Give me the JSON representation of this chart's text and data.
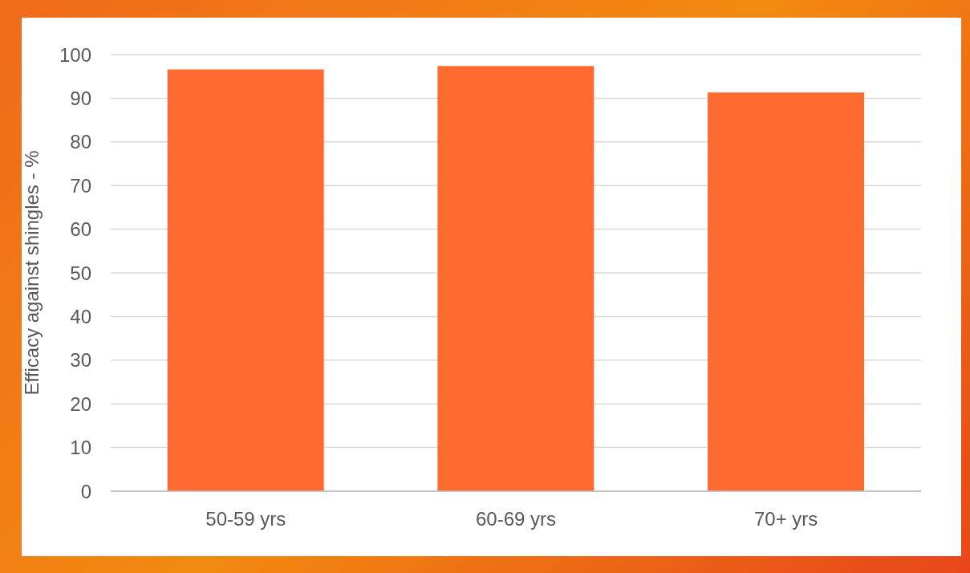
{
  "chart_data": {
    "type": "bar",
    "ylabel": "Efficacy against shingles - %",
    "categories": [
      "50-59 yrs",
      "60-69 yrs",
      "70+ yrs"
    ],
    "values": [
      96.6,
      97.4,
      91.3
    ],
    "color": "#ff6b30",
    "ylim": [
      0,
      100
    ],
    "yticks": [
      0,
      10,
      20,
      30,
      40,
      50,
      60,
      70,
      80,
      90,
      100
    ],
    "grid": "y"
  }
}
